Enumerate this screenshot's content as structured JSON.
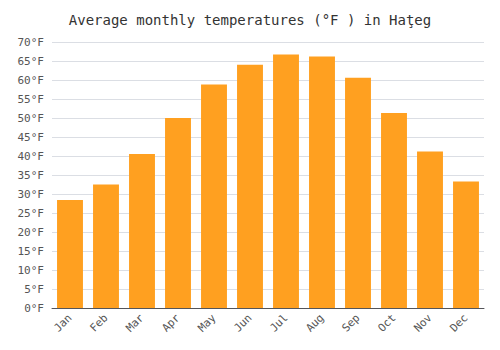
{
  "chart_data": {
    "type": "bar",
    "title": "Average monthly temperatures (°F ) in Haţeg",
    "categories": [
      "Jan",
      "Feb",
      "Mar",
      "Apr",
      "May",
      "Jun",
      "Jul",
      "Aug",
      "Sep",
      "Oct",
      "Nov",
      "Dec"
    ],
    "values": [
      28.4,
      32.5,
      40.5,
      50.0,
      58.8,
      64.0,
      66.7,
      66.2,
      60.6,
      51.3,
      41.2,
      33.3
    ],
    "color": "#FFA020",
    "ylim": [
      0,
      70
    ],
    "yticks": [
      {
        "value": 0,
        "label": "0°F"
      },
      {
        "value": 5,
        "label": "5°F"
      },
      {
        "value": 10,
        "label": "10°F"
      },
      {
        "value": 15,
        "label": "15°F"
      },
      {
        "value": 20,
        "label": "20°F"
      },
      {
        "value": 25,
        "label": "25°F"
      },
      {
        "value": 30,
        "label": "30°F"
      },
      {
        "value": 35,
        "label": "35°F"
      },
      {
        "value": 40,
        "label": "40°F"
      },
      {
        "value": 45,
        "label": "45°F"
      },
      {
        "value": 50,
        "label": "50°F"
      },
      {
        "value": 55,
        "label": "55°F"
      },
      {
        "value": 60,
        "label": "60°F"
      },
      {
        "value": 65,
        "label": "65°F"
      },
      {
        "value": 70,
        "label": "70°F"
      }
    ],
    "grid": true
  }
}
